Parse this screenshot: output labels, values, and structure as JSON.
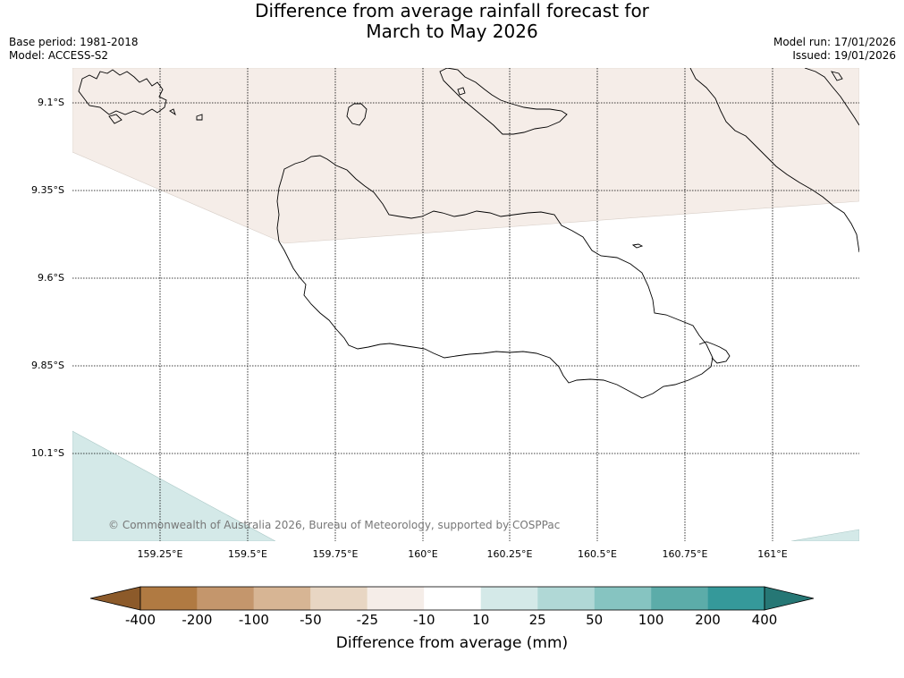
{
  "title_line1": "Difference from average rainfall forecast for",
  "title_line2": "March to May 2026",
  "meta": {
    "base_period": "Base period: 1981-2018",
    "model": "Model: ACCESS-S2",
    "model_run": "Model run: 17/01/2026",
    "issued": "Issued: 19/01/2026"
  },
  "lat_labels": [
    "9.1°S",
    "9.35°S",
    "9.6°S",
    "9.85°S",
    "10.1°S"
  ],
  "lon_labels": [
    "159.25°E",
    "159.5°E",
    "159.75°E",
    "160°E",
    "160.25°E",
    "160.5°E",
    "160.75°E",
    "161°E"
  ],
  "copyright": "© Commonwealth of Australia 2026, Bureau of Meteorology, supported by COSPPac",
  "colorbar": {
    "title": "Difference from average (mm)",
    "ticks": [
      "-400",
      "-200",
      "-100",
      "-50",
      "-25",
      "-10",
      "10",
      "25",
      "50",
      "100",
      "200",
      "400"
    ],
    "colors": [
      "#8c5a2a",
      "#b07a42",
      "#c4966c",
      "#d7b594",
      "#e8d6c3",
      "#f5ede8",
      "#ffffff",
      "#d4e9e8",
      "#b0d8d6",
      "#86c4c1",
      "#5caca9",
      "#35999a",
      "#267775"
    ]
  }
}
